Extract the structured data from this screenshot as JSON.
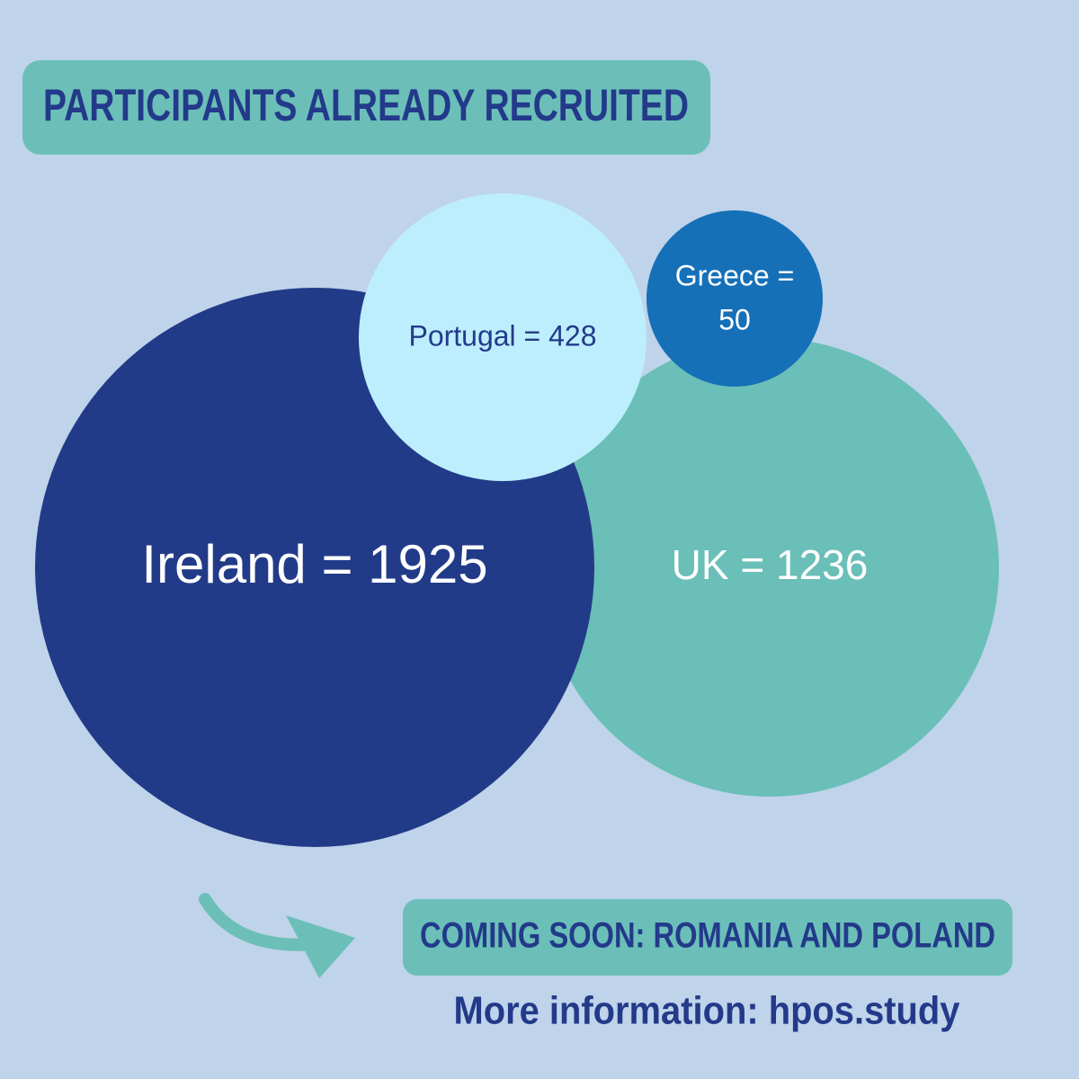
{
  "header": {
    "title": "PARTICIPANTS ALREADY RECRUITED"
  },
  "bubbles": [
    {
      "label": "Ireland = 1925"
    },
    {
      "label": "UK = 1236"
    },
    {
      "label": "Portugal = 428"
    },
    {
      "lines": [
        "Greece =",
        "50"
      ]
    }
  ],
  "footer": {
    "notice": "COMING SOON: ROMANIA AND POLAND",
    "info": "More information: hpos.study"
  }
}
